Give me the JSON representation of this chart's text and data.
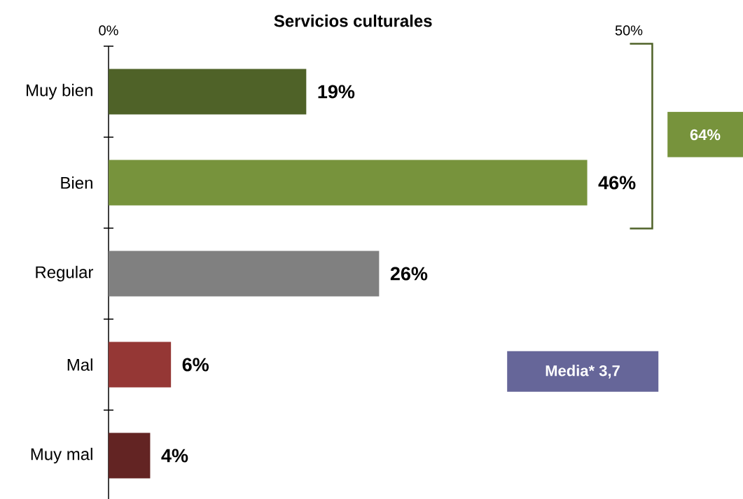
{
  "chart_data": {
    "type": "bar",
    "orientation": "horizontal",
    "title": "Servicios culturales",
    "categories": [
      "Muy bien",
      "Bien",
      "Regular",
      "Mal",
      "Muy mal"
    ],
    "values": [
      19,
      46,
      26,
      6,
      4
    ],
    "colors": [
      "#4f6228",
      "#77933c",
      "#808080",
      "#953735",
      "#632423"
    ],
    "value_labels": [
      "19%",
      "46%",
      "26%",
      "6%",
      "4%"
    ],
    "xlim": [
      0,
      50
    ],
    "xticks": [
      {
        "value": 0,
        "label": "0%"
      },
      {
        "value": 50,
        "label": "50%"
      }
    ],
    "annotations": [
      "64%",
      "Media* 3,7"
    ]
  }
}
